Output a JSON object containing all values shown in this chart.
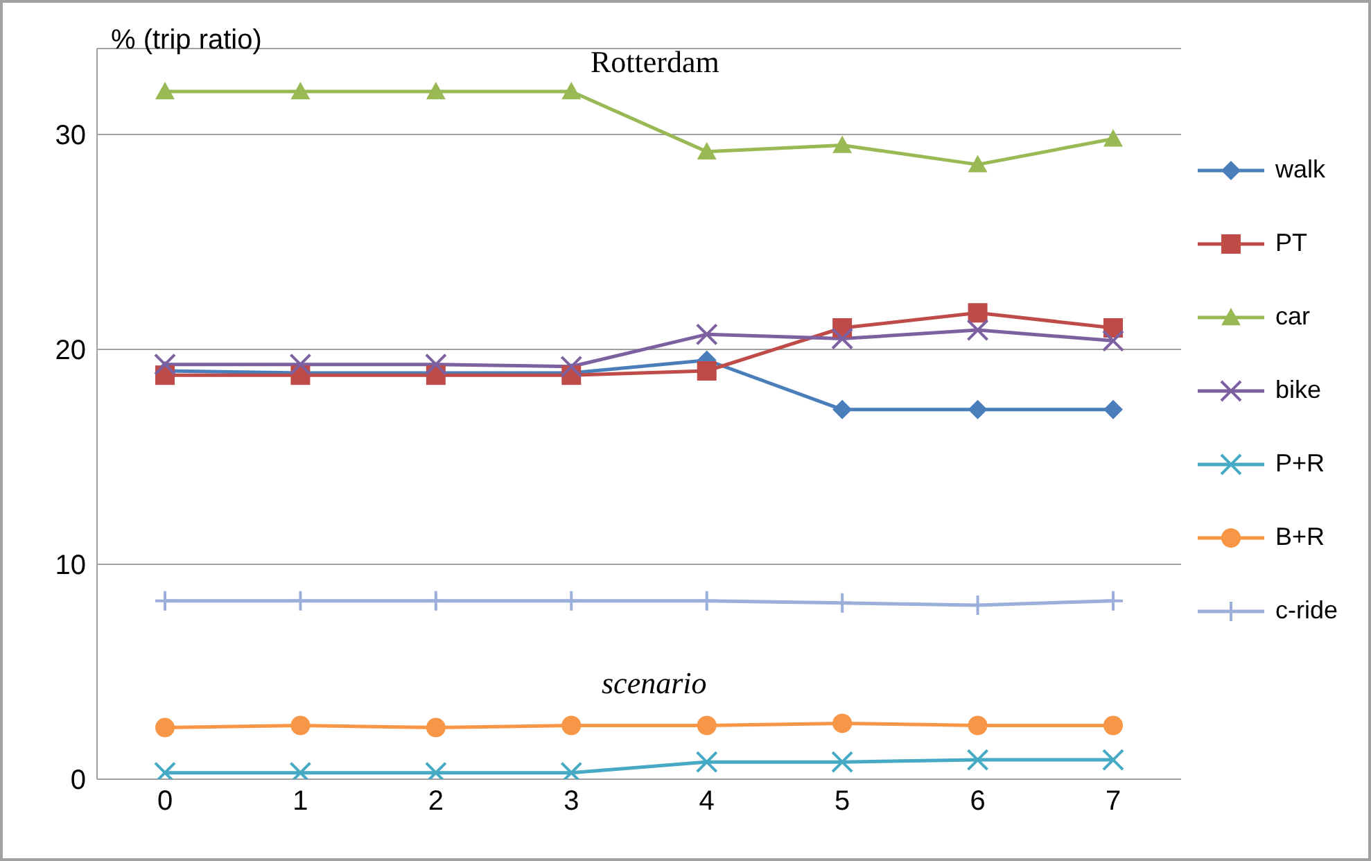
{
  "chart_data": {
    "type": "line",
    "ylabel": "% (trip ratio)",
    "annotations": [
      "Rotterdam",
      "scenario"
    ],
    "categories": [
      "0",
      "1",
      "2",
      "3",
      "4",
      "5",
      "6",
      "7"
    ],
    "ylim": [
      0,
      34
    ],
    "yticks": [
      0,
      10,
      20,
      30
    ],
    "grid": "y",
    "legend": "right",
    "series": [
      {
        "name": "walk",
        "color": "#4a7ebb",
        "marker": "diamond",
        "values": [
          19.0,
          18.9,
          18.9,
          18.9,
          19.5,
          17.2,
          17.2,
          17.2
        ]
      },
      {
        "name": "PT",
        "color": "#be4b48",
        "marker": "square",
        "values": [
          18.8,
          18.8,
          18.8,
          18.8,
          19.0,
          21.0,
          21.7,
          21.0
        ]
      },
      {
        "name": "car",
        "color": "#98b954",
        "marker": "triangle",
        "values": [
          32.0,
          32.0,
          32.0,
          32.0,
          29.2,
          29.5,
          28.6,
          29.8
        ]
      },
      {
        "name": "bike",
        "color": "#7d60a0",
        "marker": "cross",
        "values": [
          19.3,
          19.3,
          19.3,
          19.2,
          20.7,
          20.5,
          20.9,
          20.4
        ]
      },
      {
        "name": "P+R",
        "color": "#46aac5",
        "marker": "cross",
        "values": [
          0.3,
          0.3,
          0.3,
          0.3,
          0.8,
          0.8,
          0.9,
          0.9
        ]
      },
      {
        "name": "B+R",
        "color": "#f79646",
        "marker": "circle",
        "values": [
          2.4,
          2.5,
          2.4,
          2.5,
          2.5,
          2.6,
          2.5,
          2.5
        ]
      },
      {
        "name": "c-ride",
        "color": "#9bafda",
        "marker": "plus",
        "values": [
          8.3,
          8.3,
          8.3,
          8.3,
          8.3,
          8.2,
          8.1,
          8.3
        ]
      }
    ]
  }
}
